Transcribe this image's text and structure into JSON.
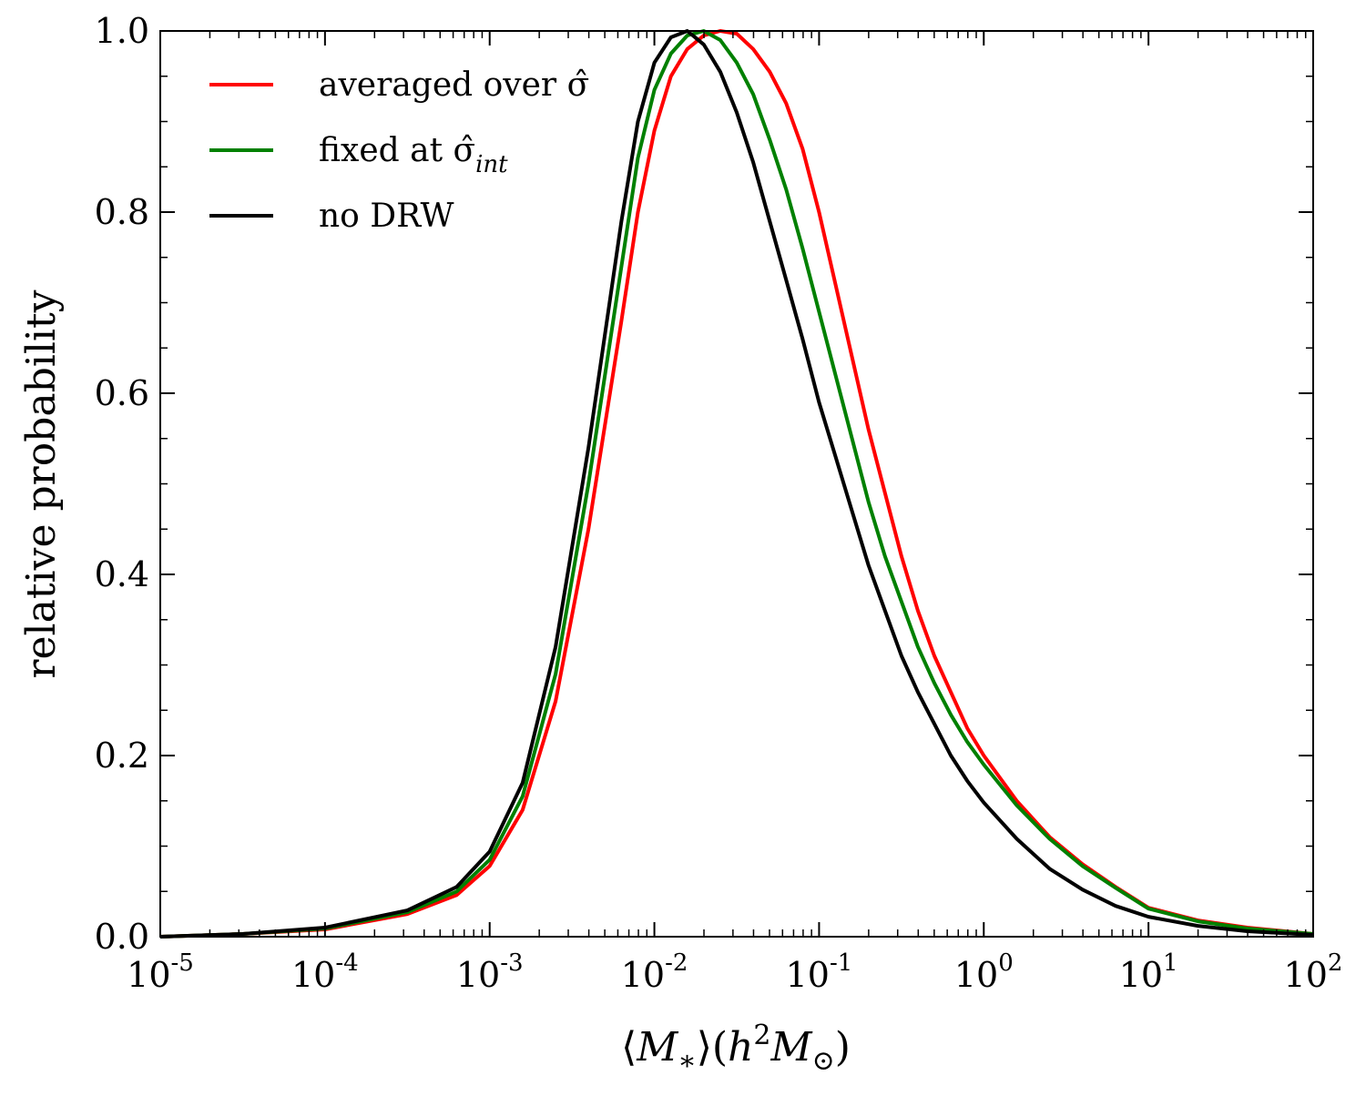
{
  "chart_data": {
    "type": "line",
    "title": "",
    "xlabel": "⟨M∗⟩(h²M⊙)",
    "ylabel": "relative probability",
    "xscale": "log",
    "xlim_exp": [
      -5,
      2
    ],
    "ylim": [
      0,
      1.0
    ],
    "x_ticks": [
      {
        "exp": -5,
        "base": "10",
        "sup": "-5"
      },
      {
        "exp": -4,
        "base": "10",
        "sup": "-4"
      },
      {
        "exp": -3,
        "base": "10",
        "sup": "-3"
      },
      {
        "exp": -2,
        "base": "10",
        "sup": "-2"
      },
      {
        "exp": -1,
        "base": "10",
        "sup": "-1"
      },
      {
        "exp": 0,
        "base": "10",
        "sup": "0"
      },
      {
        "exp": 1,
        "base": "10",
        "sup": "1"
      },
      {
        "exp": 2,
        "base": "10",
        "sup": "2"
      }
    ],
    "y_ticks": [
      {
        "value": 0.0,
        "label": "0.0"
      },
      {
        "value": 0.2,
        "label": "0.2"
      },
      {
        "value": 0.4,
        "label": "0.4"
      },
      {
        "value": 0.6,
        "label": "0.6"
      },
      {
        "value": 0.8,
        "label": "0.8"
      },
      {
        "value": 1.0,
        "label": "1.0"
      }
    ],
    "legend_position": "top-left",
    "series": [
      {
        "name": "averaged over σ̂",
        "label_main": "averaged over σ̂",
        "label_sub": "",
        "color": "#ff0000",
        "points": [
          [
            -5,
            0.0
          ],
          [
            -4.5,
            0.003
          ],
          [
            -4,
            0.008
          ],
          [
            -3.5,
            0.025
          ],
          [
            -3.2,
            0.046
          ],
          [
            -3,
            0.078
          ],
          [
            -2.8,
            0.14
          ],
          [
            -2.6,
            0.26
          ],
          [
            -2.4,
            0.45
          ],
          [
            -2.2,
            0.68
          ],
          [
            -2.1,
            0.8
          ],
          [
            -2,
            0.89
          ],
          [
            -1.9,
            0.95
          ],
          [
            -1.8,
            0.98
          ],
          [
            -1.7,
            0.995
          ],
          [
            -1.6,
            1.0
          ],
          [
            -1.5,
            0.997
          ],
          [
            -1.4,
            0.98
          ],
          [
            -1.3,
            0.955
          ],
          [
            -1.2,
            0.92
          ],
          [
            -1.1,
            0.87
          ],
          [
            -1,
            0.8
          ],
          [
            -0.9,
            0.72
          ],
          [
            -0.8,
            0.64
          ],
          [
            -0.7,
            0.56
          ],
          [
            -0.6,
            0.49
          ],
          [
            -0.5,
            0.42
          ],
          [
            -0.4,
            0.36
          ],
          [
            -0.3,
            0.31
          ],
          [
            -0.2,
            0.27
          ],
          [
            -0.1,
            0.23
          ],
          [
            0,
            0.2
          ],
          [
            0.2,
            0.15
          ],
          [
            0.4,
            0.11
          ],
          [
            0.6,
            0.08
          ],
          [
            0.8,
            0.055
          ],
          [
            1,
            0.032
          ],
          [
            1.3,
            0.018
          ],
          [
            1.6,
            0.01
          ],
          [
            2,
            0.003
          ]
        ]
      },
      {
        "name": "fixed at σ̂int",
        "label_main": "fixed at σ̂",
        "label_sub": "int",
        "color": "#008000",
        "points": [
          [
            -5,
            0.0
          ],
          [
            -4.5,
            0.003
          ],
          [
            -4,
            0.009
          ],
          [
            -3.5,
            0.027
          ],
          [
            -3.2,
            0.05
          ],
          [
            -3,
            0.085
          ],
          [
            -2.8,
            0.155
          ],
          [
            -2.6,
            0.29
          ],
          [
            -2.4,
            0.5
          ],
          [
            -2.2,
            0.74
          ],
          [
            -2.1,
            0.86
          ],
          [
            -2,
            0.935
          ],
          [
            -1.9,
            0.975
          ],
          [
            -1.8,
            0.995
          ],
          [
            -1.7,
            1.0
          ],
          [
            -1.6,
            0.99
          ],
          [
            -1.5,
            0.965
          ],
          [
            -1.4,
            0.93
          ],
          [
            -1.3,
            0.88
          ],
          [
            -1.2,
            0.825
          ],
          [
            -1.1,
            0.76
          ],
          [
            -1,
            0.69
          ],
          [
            -0.9,
            0.62
          ],
          [
            -0.8,
            0.55
          ],
          [
            -0.7,
            0.48
          ],
          [
            -0.6,
            0.42
          ],
          [
            -0.5,
            0.37
          ],
          [
            -0.4,
            0.32
          ],
          [
            -0.3,
            0.28
          ],
          [
            -0.2,
            0.245
          ],
          [
            -0.1,
            0.215
          ],
          [
            0,
            0.19
          ],
          [
            0.2,
            0.145
          ],
          [
            0.4,
            0.108
          ],
          [
            0.6,
            0.078
          ],
          [
            0.8,
            0.054
          ],
          [
            1,
            0.031
          ],
          [
            1.3,
            0.017
          ],
          [
            1.6,
            0.009
          ],
          [
            2,
            0.003
          ]
        ]
      },
      {
        "name": "no DRW",
        "label_main": "no DRW",
        "label_sub": "",
        "color": "#000000",
        "points": [
          [
            -5,
            0.0
          ],
          [
            -4.5,
            0.003
          ],
          [
            -4,
            0.01
          ],
          [
            -3.5,
            0.029
          ],
          [
            -3.2,
            0.055
          ],
          [
            -3,
            0.094
          ],
          [
            -2.8,
            0.17
          ],
          [
            -2.6,
            0.32
          ],
          [
            -2.4,
            0.54
          ],
          [
            -2.2,
            0.79
          ],
          [
            -2.1,
            0.9
          ],
          [
            -2,
            0.965
          ],
          [
            -1.9,
            0.993
          ],
          [
            -1.8,
            1.0
          ],
          [
            -1.7,
            0.985
          ],
          [
            -1.6,
            0.955
          ],
          [
            -1.5,
            0.91
          ],
          [
            -1.4,
            0.855
          ],
          [
            -1.3,
            0.79
          ],
          [
            -1.2,
            0.725
          ],
          [
            -1.1,
            0.66
          ],
          [
            -1,
            0.59
          ],
          [
            -0.9,
            0.53
          ],
          [
            -0.8,
            0.47
          ],
          [
            -0.7,
            0.41
          ],
          [
            -0.6,
            0.36
          ],
          [
            -0.5,
            0.31
          ],
          [
            -0.4,
            0.27
          ],
          [
            -0.3,
            0.235
          ],
          [
            -0.2,
            0.2
          ],
          [
            -0.1,
            0.172
          ],
          [
            0,
            0.148
          ],
          [
            0.2,
            0.108
          ],
          [
            0.4,
            0.075
          ],
          [
            0.6,
            0.052
          ],
          [
            0.8,
            0.034
          ],
          [
            1,
            0.022
          ],
          [
            1.3,
            0.012
          ],
          [
            1.6,
            0.006
          ],
          [
            2,
            0.002
          ]
        ]
      }
    ]
  }
}
